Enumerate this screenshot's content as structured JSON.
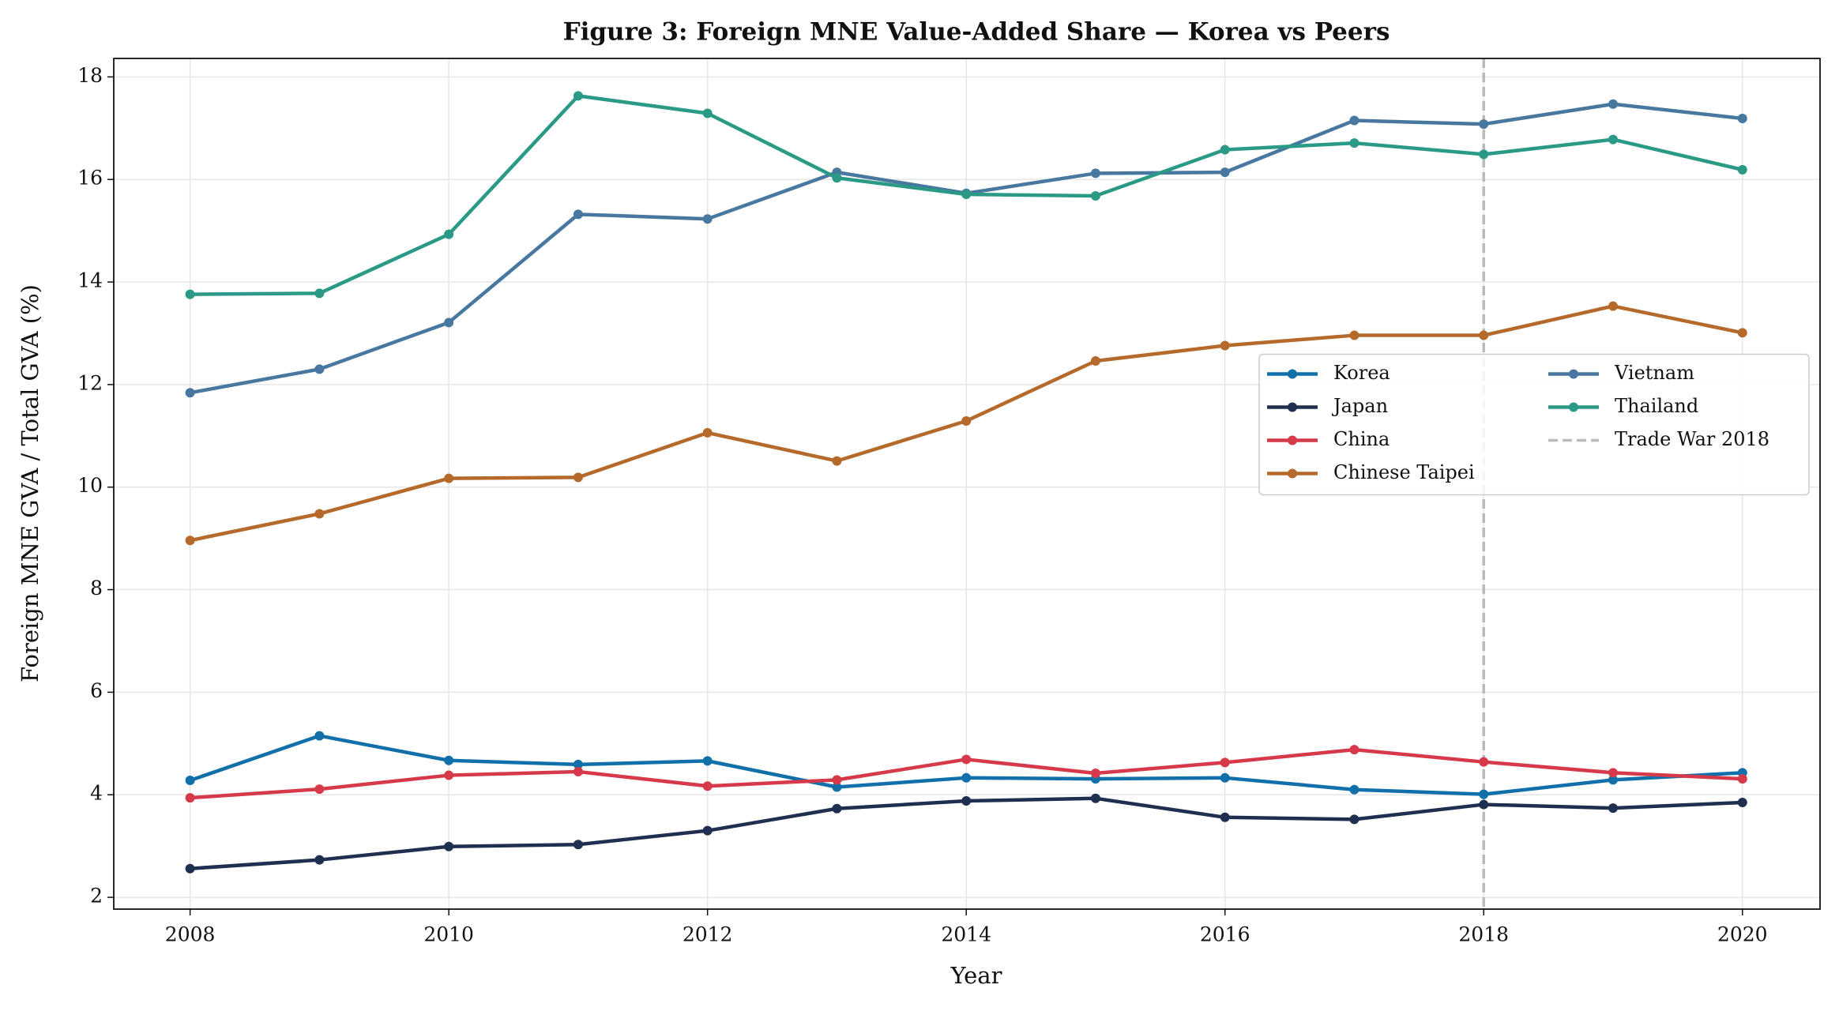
{
  "chart_data": {
    "type": "line",
    "title": "Figure 3: Foreign MNE Value-Added Share — Korea vs Peers",
    "x_label": "Year",
    "y_label": "Foreign MNE GVA / Total GVA (%)",
    "x": [
      2008,
      2009,
      2010,
      2011,
      2012,
      2013,
      2014,
      2015,
      2016,
      2017,
      2018,
      2019,
      2020
    ],
    "series": [
      {
        "name": "Korea",
        "color": "#1170aa",
        "values": [
          4.28,
          5.15,
          4.67,
          4.59,
          4.66,
          4.15,
          4.33,
          4.31,
          4.33,
          4.1,
          4.01,
          4.29,
          4.43
        ]
      },
      {
        "name": "Japan",
        "color": "#1f2f4f",
        "values": [
          2.56,
          2.73,
          2.99,
          3.03,
          3.3,
          3.73,
          3.88,
          3.93,
          3.56,
          3.52,
          3.81,
          3.74,
          3.85
        ]
      },
      {
        "name": "China",
        "color": "#d63a4a",
        "values": [
          3.94,
          4.11,
          4.38,
          4.45,
          4.17,
          4.29,
          4.69,
          4.42,
          4.63,
          4.88,
          4.64,
          4.43,
          4.31
        ]
      },
      {
        "name": "Chinese Taipei",
        "color": "#b5692a",
        "values": [
          8.96,
          9.48,
          10.17,
          10.19,
          11.06,
          10.51,
          11.29,
          12.46,
          12.76,
          12.96,
          12.96,
          13.53,
          13.01
        ]
      },
      {
        "name": "Vietnam",
        "color": "#4878a0",
        "values": [
          11.84,
          12.3,
          13.21,
          15.32,
          15.23,
          16.14,
          15.73,
          16.12,
          16.14,
          17.15,
          17.08,
          17.47,
          17.19
        ]
      },
      {
        "name": "Thailand",
        "color": "#2a9a87",
        "values": [
          13.76,
          13.78,
          14.93,
          17.63,
          17.29,
          16.03,
          15.71,
          15.68,
          16.58,
          16.71,
          16.49,
          16.78,
          16.19
        ]
      }
    ],
    "vline": {
      "x": 2018,
      "label": "Trade War 2018",
      "color": "#bbbbbb"
    },
    "xlim": [
      2007.41,
      2020.6
    ],
    "ylim": [
      1.77,
      18.36
    ],
    "xticks": [
      2008,
      2010,
      2012,
      2014,
      2016,
      2018,
      2020
    ],
    "yticks": [
      2,
      4,
      6,
      8,
      10,
      12,
      14,
      16,
      18
    ],
    "grid": true,
    "legend": "center right"
  }
}
